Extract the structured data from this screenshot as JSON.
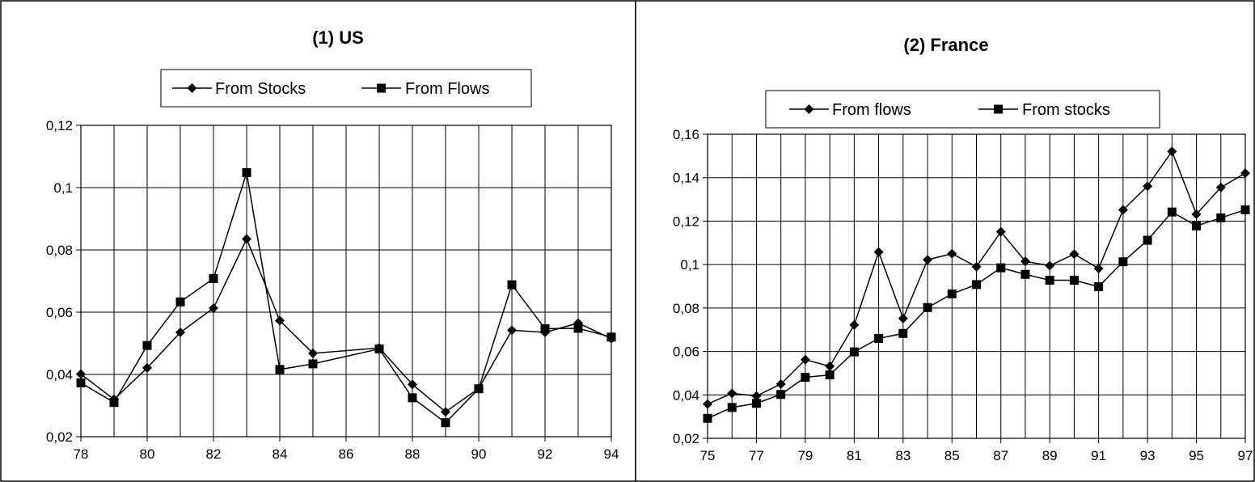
{
  "chart_data": [
    {
      "type": "line",
      "title": "(1) US",
      "xlabel": "",
      "ylabel": "",
      "xlim": [
        78,
        94
      ],
      "ylim": [
        0.02,
        0.12
      ],
      "xticks": [
        "78",
        "80",
        "82",
        "84",
        "86",
        "88",
        "90",
        "92",
        "94"
      ],
      "yticks": [
        "0,02",
        "0,04",
        "0,06",
        "0,08",
        "0,1",
        "0,12"
      ],
      "grid": true,
      "legend": "top-center",
      "series": [
        {
          "name": "From Stocks",
          "marker": "diamond",
          "x": [
            78,
            79,
            80,
            81,
            82,
            83,
            84,
            85,
            87,
            88,
            89,
            90,
            91,
            92,
            93,
            94
          ],
          "values": [
            0.0401,
            0.032,
            0.0421,
            0.0535,
            0.0613,
            0.0835,
            0.0573,
            0.0468,
            0.0485,
            0.0368,
            0.028,
            0.0355,
            0.0542,
            0.0535,
            0.0565,
            0.0515
          ]
        },
        {
          "name": "From Flows",
          "marker": "square",
          "x": [
            78,
            79,
            80,
            81,
            82,
            83,
            84,
            85,
            87,
            88,
            89,
            90,
            91,
            92,
            93,
            94
          ],
          "values": [
            0.0373,
            0.031,
            0.0493,
            0.0633,
            0.0708,
            0.1048,
            0.0416,
            0.0434,
            0.0482,
            0.0325,
            0.0245,
            0.0354,
            0.0688,
            0.0547,
            0.0548,
            0.052
          ]
        }
      ]
    },
    {
      "type": "line",
      "title": "(2) France",
      "xlabel": "",
      "ylabel": "",
      "xlim": [
        75,
        97
      ],
      "ylim": [
        0.02,
        0.16
      ],
      "xticks": [
        "75",
        "77",
        "79",
        "81",
        "83",
        "85",
        "87",
        "89",
        "91",
        "93",
        "95",
        "97"
      ],
      "yticks": [
        "0,02",
        "0,04",
        "0,06",
        "0,08",
        "0,1",
        "0,12",
        "0,14",
        "0,16"
      ],
      "grid": true,
      "legend": "top-center",
      "series": [
        {
          "name": "From flows",
          "marker": "diamond",
          "x": [
            75,
            76,
            77,
            78,
            79,
            80,
            81,
            82,
            83,
            84,
            85,
            86,
            87,
            88,
            89,
            90,
            91,
            92,
            93,
            94,
            95,
            96,
            97
          ],
          "values": [
            0.0358,
            0.0407,
            0.0395,
            0.045,
            0.0562,
            0.0532,
            0.0722,
            0.1058,
            0.0752,
            0.1022,
            0.105,
            0.099,
            0.1151,
            0.1015,
            0.0995,
            0.1048,
            0.0982,
            0.1252,
            0.1361,
            0.1521,
            0.1232,
            0.1355,
            0.1421
          ]
        },
        {
          "name": "From stocks",
          "marker": "square",
          "x": [
            75,
            76,
            77,
            78,
            79,
            80,
            81,
            82,
            83,
            84,
            85,
            86,
            87,
            88,
            89,
            90,
            91,
            92,
            93,
            94,
            95,
            96,
            97
          ],
          "values": [
            0.0292,
            0.0342,
            0.0361,
            0.0402,
            0.0481,
            0.0492,
            0.0598,
            0.066,
            0.0683,
            0.0802,
            0.0865,
            0.0908,
            0.0985,
            0.0955,
            0.0928,
            0.0928,
            0.0898,
            0.1013,
            0.1112,
            0.1242,
            0.1178,
            0.1215,
            0.1252
          ]
        }
      ]
    }
  ]
}
